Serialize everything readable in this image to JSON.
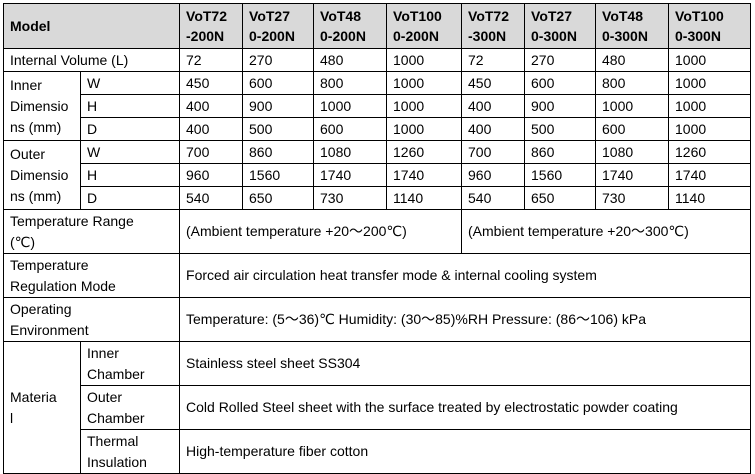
{
  "header": {
    "model_label": "Model",
    "models": [
      {
        "l1": "VoT72",
        "l2": "-200N"
      },
      {
        "l1": "VoT27",
        "l2": "0-200N"
      },
      {
        "l1": "VoT48",
        "l2": "0-200N"
      },
      {
        "l1": "VoT100",
        "l2": "0-200N"
      },
      {
        "l1": "VoT72",
        "l2": "-300N"
      },
      {
        "l1": "VoT27",
        "l2": "0-300N"
      },
      {
        "l1": "VoT48",
        "l2": "0-300N"
      },
      {
        "l1": "VoT100",
        "l2": "0-300N"
      }
    ]
  },
  "internal_volume": {
    "label": "Internal Volume (L)",
    "values": [
      "72",
      "270",
      "480",
      "1000",
      "72",
      "270",
      "480",
      "1000"
    ]
  },
  "inner_dimensions": {
    "l1": "Inner",
    "l2": "Dimensio",
    "l3": "ns (mm)",
    "rows": [
      {
        "axis": "W",
        "values": [
          "450",
          "600",
          "800",
          "1000",
          "450",
          "600",
          "800",
          "1000"
        ]
      },
      {
        "axis": "H",
        "values": [
          "400",
          "900",
          "1000",
          "1000",
          "400",
          "900",
          "1000",
          "1000"
        ]
      },
      {
        "axis": "D",
        "values": [
          "400",
          "500",
          "600",
          "1000",
          "400",
          "500",
          "600",
          "1000"
        ]
      }
    ]
  },
  "outer_dimensions": {
    "l1": "Outer",
    "l2": "Dimensio",
    "l3": "ns (mm)",
    "rows": [
      {
        "axis": "W",
        "values": [
          "700",
          "860",
          "1080",
          "1260",
          "700",
          "860",
          "1080",
          "1260"
        ]
      },
      {
        "axis": "H",
        "values": [
          "960",
          "1560",
          "1740",
          "1740",
          "960",
          "1560",
          "1740",
          "1740"
        ]
      },
      {
        "axis": "D",
        "values": [
          "540",
          "650",
          "730",
          "1140",
          "540",
          "650",
          "730",
          "1140"
        ]
      }
    ]
  },
  "temperature_range": {
    "l1": "Temperature Range",
    "l2": "(℃)",
    "value_200": "(Ambient temperature +20～200℃)",
    "value_300": "(Ambient temperature +20～300℃)"
  },
  "regulation_mode": {
    "l1": "Temperature",
    "l2": "Regulation Mode",
    "value": "Forced air circulation heat transfer mode & internal cooling system"
  },
  "operating_env": {
    "l1": "Operating",
    "l2": "Environment",
    "value": "Temperature: (5～36)℃  Humidity: (30～85)%RH   Pressure: (86～106) kPa"
  },
  "material": {
    "l1": "Materia",
    "l2": "l",
    "rows": [
      {
        "l1": "Inner",
        "l2": "Chamber",
        "value": "Stainless steel sheet SS304"
      },
      {
        "l1": "Outer",
        "l2": "Chamber",
        "value": "Cold Rolled Steel sheet with the surface treated by electrostatic powder coating"
      },
      {
        "l1": "Thermal",
        "l2": "Insulation",
        "value": "High-temperature fiber cotton"
      }
    ]
  }
}
